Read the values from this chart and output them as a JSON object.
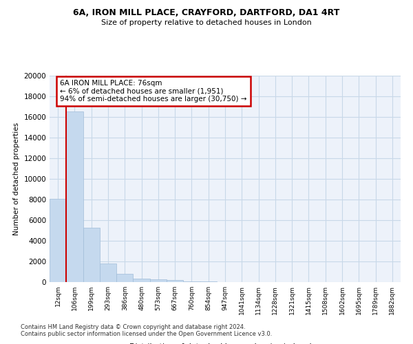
{
  "title1": "6A, IRON MILL PLACE, CRAYFORD, DARTFORD, DA1 4RT",
  "title2": "Size of property relative to detached houses in London",
  "xlabel": "Distribution of detached houses by size in London",
  "ylabel": "Number of detached properties",
  "bar_color": "#c5d9ee",
  "bar_edge_color": "#a0bcd8",
  "categories": [
    "12sqm",
    "106sqm",
    "199sqm",
    "293sqm",
    "386sqm",
    "480sqm",
    "573sqm",
    "667sqm",
    "760sqm",
    "854sqm",
    "947sqm",
    "1041sqm",
    "1134sqm",
    "1228sqm",
    "1321sqm",
    "1415sqm",
    "1508sqm",
    "1602sqm",
    "1695sqm",
    "1789sqm",
    "1882sqm"
  ],
  "values": [
    8100,
    16500,
    5300,
    1800,
    800,
    350,
    250,
    200,
    100,
    50,
    0,
    0,
    0,
    0,
    0,
    0,
    0,
    0,
    0,
    0,
    0
  ],
  "ylim": [
    0,
    20000
  ],
  "yticks": [
    0,
    2000,
    4000,
    6000,
    8000,
    10000,
    12000,
    14000,
    16000,
    18000,
    20000
  ],
  "marker_color": "#cc0000",
  "annotation_text": "6A IRON MILL PLACE: 76sqm\n← 6% of detached houses are smaller (1,951)\n94% of semi-detached houses are larger (30,750) →",
  "annotation_box_color": "#cc0000",
  "footer1": "Contains HM Land Registry data © Crown copyright and database right 2024.",
  "footer2": "Contains public sector information licensed under the Open Government Licence v3.0.",
  "grid_color": "#c8d8e8",
  "background_color": "#edf2fa"
}
